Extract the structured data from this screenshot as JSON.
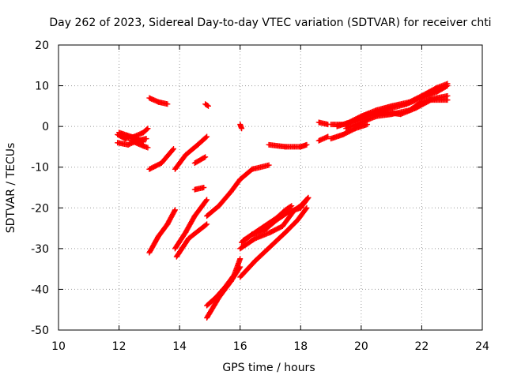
{
  "chart_data": {
    "type": "scatter",
    "title": "Day 262 of 2023, Sidereal Day-to-day VTEC variation (SDTVAR) for receiver chti",
    "xlabel": "GPS time / hours",
    "ylabel": "SDTVAR / TECUs",
    "xlim": [
      10,
      24
    ],
    "ylim": [
      -50,
      20
    ],
    "xticks": [
      10,
      12,
      14,
      16,
      18,
      20,
      22,
      24
    ],
    "yticks": [
      -50,
      -40,
      -30,
      -20,
      -10,
      0,
      10,
      20
    ],
    "xtick_labels": [
      "10",
      "12",
      "14",
      "16",
      "18",
      "20",
      "22",
      "24"
    ],
    "ytick_labels": [
      "-50",
      "-40",
      "-30",
      "-20",
      "-10",
      "0",
      "10",
      "20"
    ],
    "grid": true,
    "marker": "plus",
    "color": "#ff0000",
    "tracks": [
      {
        "x": [
          11.95,
          12.2,
          12.5,
          12.8,
          12.95
        ],
        "y": [
          -2.0,
          -3.0,
          -2.5,
          -1.5,
          -0.5
        ]
      },
      {
        "x": [
          11.95,
          12.3,
          12.6,
          12.9
        ],
        "y": [
          -4.0,
          -4.5,
          -3.5,
          -3.0
        ]
      },
      {
        "x": [
          12.0,
          12.4,
          12.8
        ],
        "y": [
          -1.5,
          -2.5,
          -3.8
        ]
      },
      {
        "x": [
          12.4,
          12.8,
          12.95
        ],
        "y": [
          -3.5,
          -4.8,
          -5.2
        ]
      },
      {
        "x": [
          13.0,
          13.3,
          13.6
        ],
        "y": [
          7.0,
          6.0,
          5.5
        ]
      },
      {
        "x": [
          13.0,
          13.4,
          13.8
        ],
        "y": [
          -10.5,
          -9.0,
          -5.5
        ]
      },
      {
        "x": [
          14.85,
          14.95
        ],
        "y": [
          5.5,
          5.0
        ]
      },
      {
        "x": [
          13.0,
          13.3,
          13.6,
          13.85
        ],
        "y": [
          -31.0,
          -27.0,
          -24.0,
          -20.5
        ]
      },
      {
        "x": [
          13.85,
          14.2,
          14.6,
          14.9
        ],
        "y": [
          -10.5,
          -7.0,
          -4.5,
          -2.5
        ]
      },
      {
        "x": [
          14.5,
          14.85
        ],
        "y": [
          -9.0,
          -7.5
        ]
      },
      {
        "x": [
          14.5,
          14.8
        ],
        "y": [
          -15.5,
          -15.0
        ]
      },
      {
        "x": [
          13.85,
          14.2,
          14.5,
          14.9
        ],
        "y": [
          -30.0,
          -26.0,
          -22.0,
          -18.0
        ]
      },
      {
        "x": [
          13.9,
          14.3,
          14.9
        ],
        "y": [
          -32.0,
          -27.5,
          -24.0
        ]
      },
      {
        "x": [
          14.9,
          15.3,
          15.7,
          16.0,
          16.4,
          16.95
        ],
        "y": [
          -22.0,
          -19.5,
          -16.0,
          -13.0,
          -10.5,
          -9.5
        ]
      },
      {
        "x": [
          16.95,
          17.5,
          18.0,
          18.2
        ],
        "y": [
          -4.5,
          -5.0,
          -5.0,
          -4.5
        ]
      },
      {
        "x": [
          16.0,
          16.05
        ],
        "y": [
          0.5,
          -0.5
        ]
      },
      {
        "x": [
          14.9,
          15.3,
          15.7,
          16.0
        ],
        "y": [
          -47.0,
          -42.0,
          -38.0,
          -34.5
        ]
      },
      {
        "x": [
          14.9,
          15.2,
          15.5,
          15.8,
          16.0
        ],
        "y": [
          -44.0,
          -42.0,
          -39.5,
          -36.5,
          -32.5
        ]
      },
      {
        "x": [
          16.0,
          16.5,
          17.0,
          17.4,
          17.8,
          18.0,
          18.25
        ],
        "y": [
          -30.0,
          -27.5,
          -26.0,
          -24.5,
          -20.5,
          -19.5,
          -17.5
        ]
      },
      {
        "x": [
          16.1,
          16.4,
          16.8,
          17.2,
          17.6,
          18.0,
          18.25
        ],
        "y": [
          -28.0,
          -26.5,
          -25.5,
          -23.0,
          -21.0,
          -20.0,
          -17.5
        ]
      },
      {
        "x": [
          16.0,
          16.5,
          17.0,
          17.5,
          17.9,
          18.2
        ],
        "y": [
          -37.0,
          -33.0,
          -29.5,
          -26.0,
          -23.0,
          -20.0
        ]
      },
      {
        "x": [
          16.05,
          16.4,
          16.8,
          17.2,
          17.5,
          17.7
        ],
        "y": [
          -28.5,
          -26.5,
          -24.5,
          -22.5,
          -20.5,
          -19.5
        ]
      },
      {
        "x": [
          18.6,
          18.9
        ],
        "y": [
          1.0,
          0.5
        ]
      },
      {
        "x": [
          18.6,
          18.9
        ],
        "y": [
          -3.5,
          -2.5
        ]
      },
      {
        "x": [
          19.0,
          19.5,
          20.0,
          20.5,
          21.0,
          21.5,
          22.0,
          22.5,
          22.85
        ],
        "y": [
          0.5,
          0.5,
          2.0,
          3.5,
          4.5,
          5.5,
          7.0,
          8.5,
          10.0
        ]
      },
      {
        "x": [
          19.2,
          19.6,
          20.0,
          20.5,
          21.0,
          21.6,
          22.0,
          22.5,
          22.85
        ],
        "y": [
          0.0,
          1.0,
          2.5,
          4.0,
          5.0,
          6.0,
          7.5,
          9.5,
          10.5
        ]
      },
      {
        "x": [
          19.5,
          20.0,
          20.5,
          21.0,
          21.6,
          22.0,
          22.5,
          22.85
        ],
        "y": [
          -0.5,
          1.0,
          2.5,
          3.0,
          4.0,
          6.0,
          7.0,
          7.5
        ]
      },
      {
        "x": [
          19.8,
          20.2,
          20.8,
          21.3,
          21.8,
          22.3,
          22.85
        ],
        "y": [
          1.5,
          3.0,
          3.5,
          3.0,
          4.5,
          6.5,
          6.5
        ]
      },
      {
        "x": [
          19.0,
          19.4,
          19.8,
          20.2
        ],
        "y": [
          -3.0,
          -2.0,
          -0.5,
          0.5
        ]
      }
    ]
  }
}
